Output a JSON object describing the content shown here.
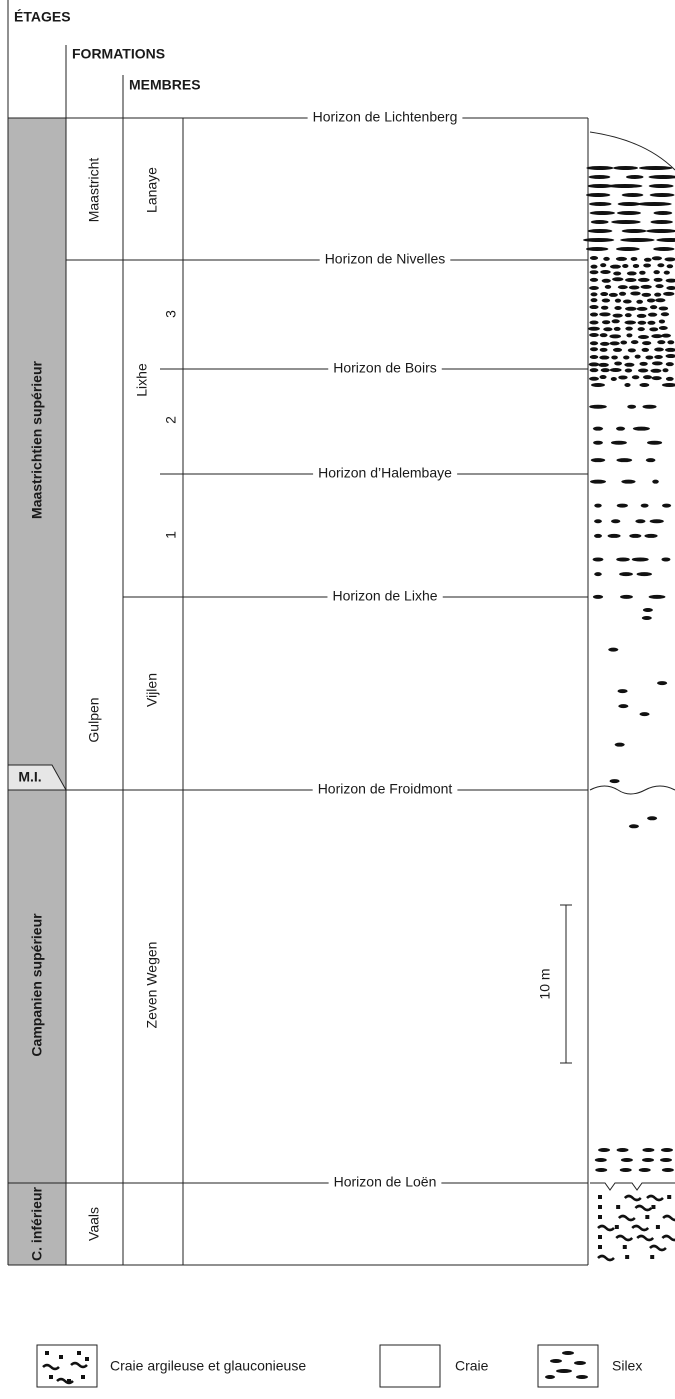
{
  "headers": {
    "etages": "ÉTAGES",
    "formations": "FORMATIONS",
    "membres": "MEMBRES"
  },
  "etages": [
    "Maastrichtien supérieur",
    "M.I.",
    "Campanien supérieur",
    "C. inférieur"
  ],
  "formations": [
    "Maastricht",
    "Gulpen",
    "Vaals"
  ],
  "membres": [
    "Lanaye",
    "Lixhe",
    "Vijlen",
    "Zeven Wegen"
  ],
  "lixhe_units": [
    "3",
    "2",
    "1"
  ],
  "horizons": [
    "Horizon de Lichtenberg",
    "Horizon de Nivelles",
    "Horizon de Boirs",
    "Horizon d’Halembaye",
    "Horizon de Lixhe",
    "Horizon de Froidmont",
    "Horizon de Loën"
  ],
  "scale": "10 m",
  "legend": [
    "Craie argileuse et glauconieuse",
    "Craie",
    "Silex"
  ]
}
